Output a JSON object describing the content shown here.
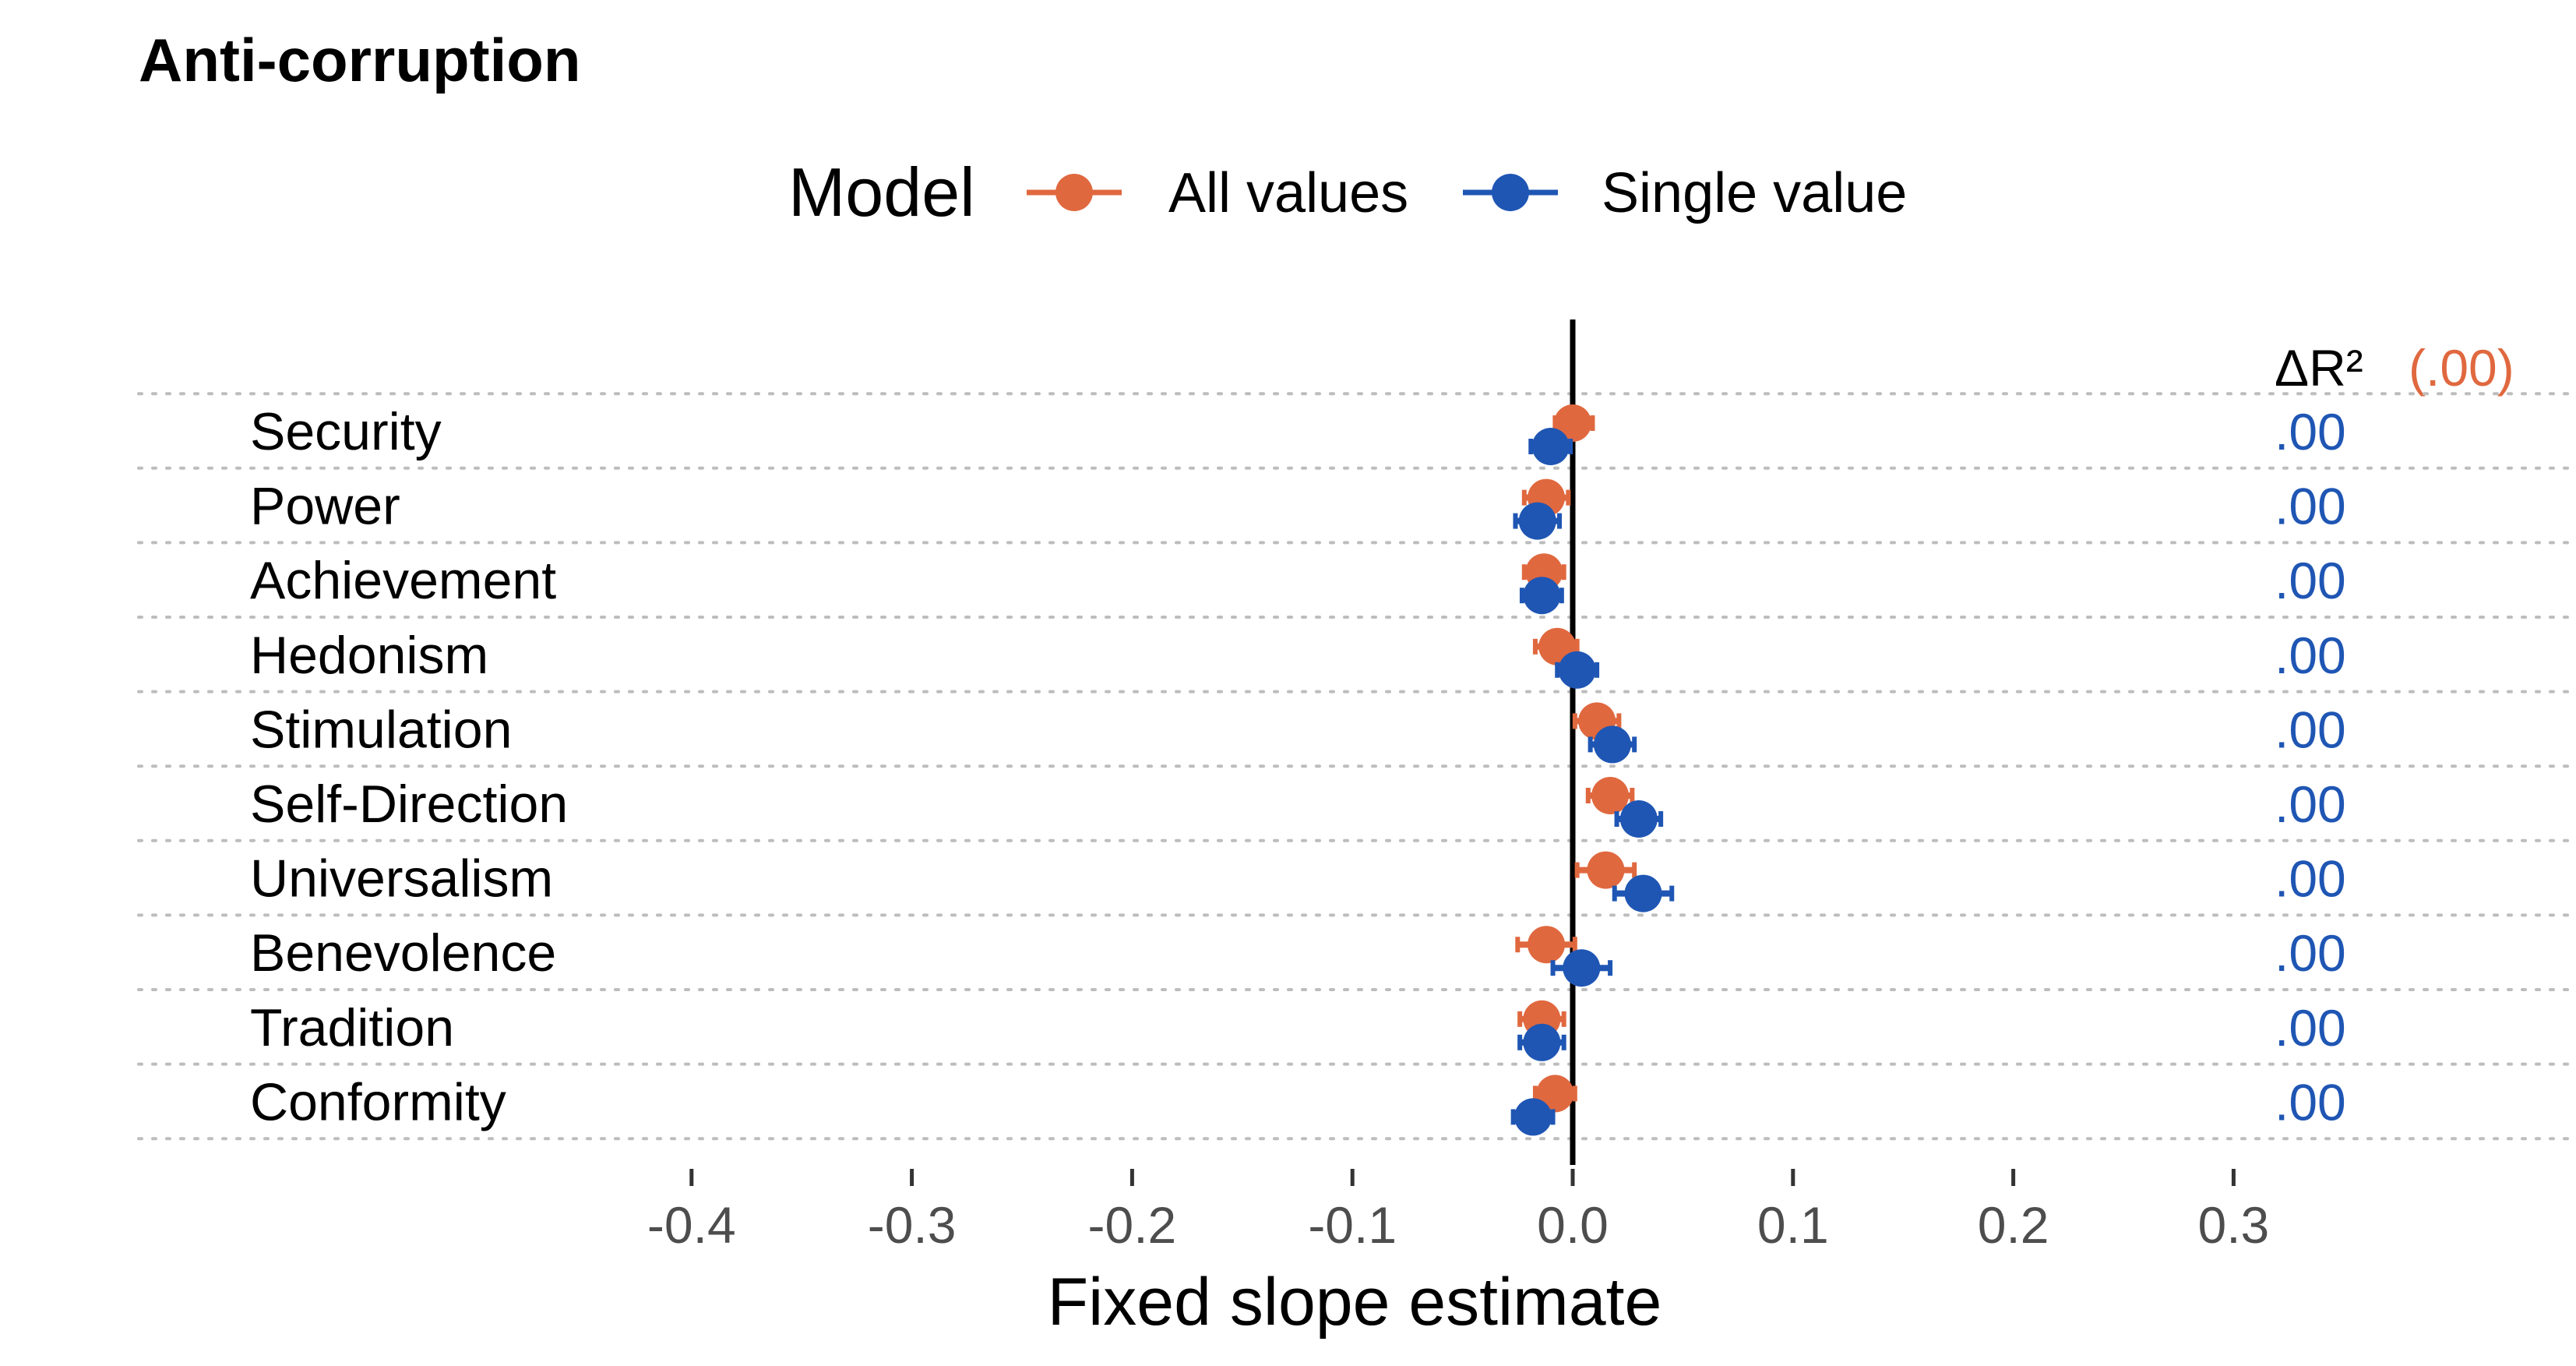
{
  "colors": {
    "all_values": "#E0683F",
    "single_value": "#1F56B4",
    "zero_line": "#000000",
    "grid": "#bdbdbd"
  },
  "chart_data": {
    "type": "scatter",
    "title": "Anti-corruption",
    "xlabel": "Fixed slope estimate",
    "ylabel": "",
    "xlim": [
      -0.45,
      0.35
    ],
    "xticks": [
      -0.4,
      -0.3,
      -0.2,
      -0.1,
      0.0,
      0.1,
      0.2,
      0.3
    ],
    "xtick_labels": [
      "-0.4",
      "-0.3",
      "-0.2",
      "-0.1",
      "0.0",
      "0.1",
      "0.2",
      "0.3"
    ],
    "legend": {
      "title": "Model",
      "position": "top",
      "entries": [
        "All values",
        "Single value"
      ]
    },
    "grid": "horizontal dotted",
    "categories": [
      "Security",
      "Power",
      "Achievement",
      "Hedonism",
      "Stimulation",
      "Self-Direction",
      "Universalism",
      "Benevolence",
      "Tradition",
      "Conformity"
    ],
    "series": [
      {
        "name": "All values",
        "values": [
          0.0,
          -0.012,
          -0.013,
          -0.007,
          0.011,
          0.017,
          0.015,
          -0.012,
          -0.014,
          -0.008
        ],
        "ci_low": [
          -0.008,
          -0.022,
          -0.022,
          -0.017,
          0.001,
          0.007,
          0.002,
          -0.025,
          -0.024,
          -0.017
        ],
        "ci_high": [
          0.009,
          -0.002,
          -0.004,
          0.002,
          0.021,
          0.027,
          0.028,
          0.001,
          -0.004,
          0.001
        ]
      },
      {
        "name": "Single value",
        "values": [
          -0.01,
          -0.016,
          -0.014,
          0.002,
          0.018,
          0.03,
          0.032,
          0.004,
          -0.014,
          -0.018
        ],
        "ci_low": [
          -0.019,
          -0.026,
          -0.023,
          -0.007,
          0.008,
          0.02,
          0.019,
          -0.009,
          -0.024,
          -0.027
        ],
        "ci_high": [
          -0.001,
          -0.006,
          -0.005,
          0.011,
          0.028,
          0.04,
          0.045,
          0.017,
          -0.004,
          -0.009
        ]
      }
    ],
    "delta_r2": {
      "header": "ΔR²",
      "all_values": "(.00)",
      "single_value": [
        ".00",
        ".00",
        ".00",
        ".00",
        ".00",
        ".00",
        ".00",
        ".00",
        ".00",
        ".00"
      ]
    }
  }
}
